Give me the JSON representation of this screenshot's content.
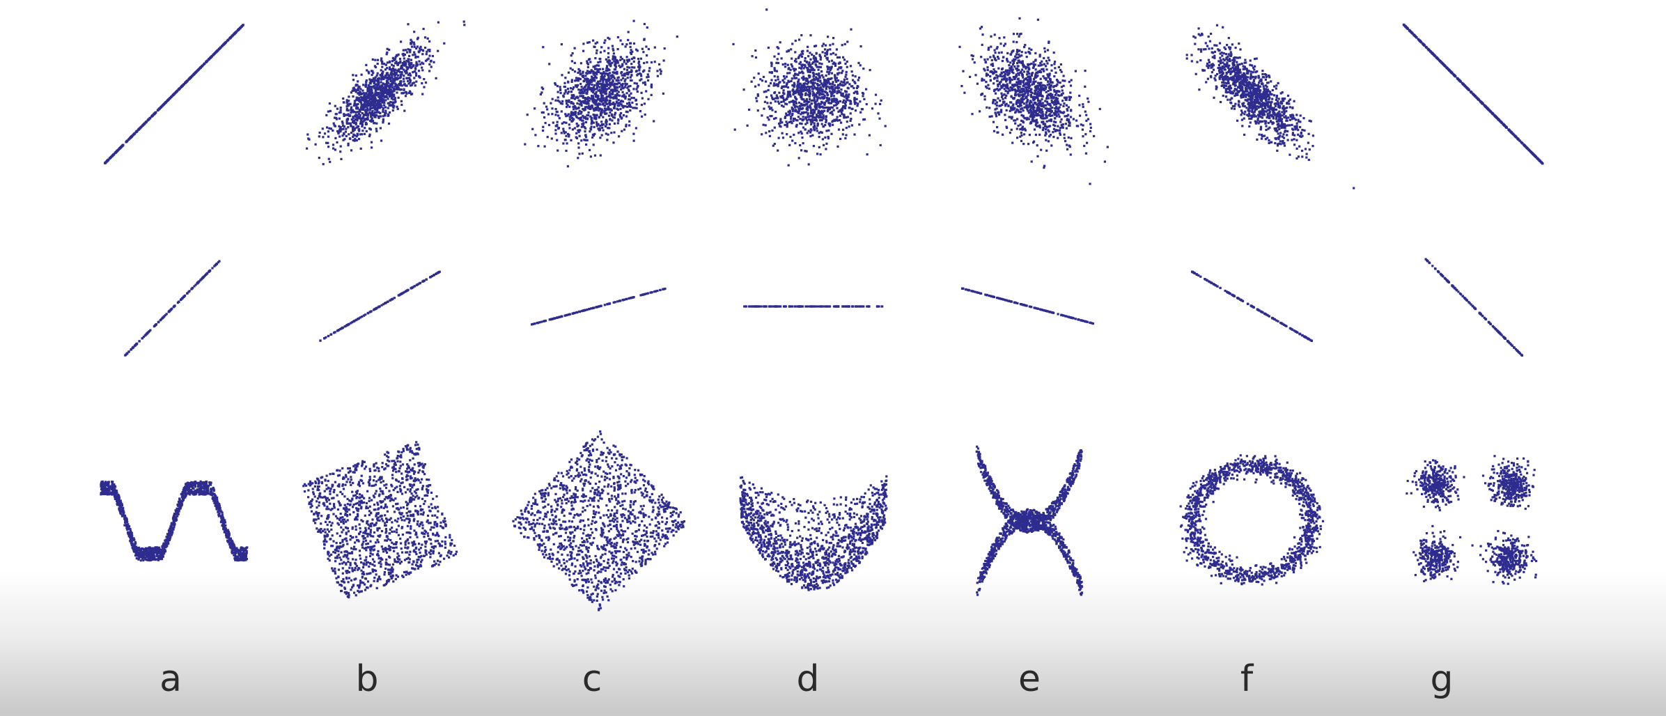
{
  "chart_data": {
    "type": "scatter",
    "point_color": "#2e2c8f",
    "axes_visible": false,
    "grid": false,
    "column_labels": [
      "a",
      "b",
      "c",
      "d",
      "e",
      "f",
      "g"
    ],
    "rows": [
      {
        "row": 1,
        "description_kind": "gaussian clouds with varying correlation",
        "correlations": [
          1.0,
          0.8,
          0.4,
          0.0,
          -0.4,
          -0.8,
          -1.0
        ]
      },
      {
        "row": 2,
        "description_kind": "perfect linear relationships with varying slope",
        "correlations": [
          1.0,
          1.0,
          1.0,
          0.0,
          -1.0,
          -1.0,
          -1.0
        ]
      },
      {
        "row": 3,
        "description_kind": "nonlinear relationships with zero correlation",
        "shapes": [
          "wave",
          "rotated-square",
          "diamond",
          "parabola",
          "x-cross",
          "ring",
          "four-clusters"
        ],
        "correlations": [
          0.0,
          0.0,
          0.0,
          0.0,
          0.0,
          0.0,
          0.0
        ]
      }
    ]
  },
  "labels": {
    "a": "a",
    "b": "b",
    "c": "c",
    "d": "d",
    "e": "e",
    "f": "f",
    "g": "g"
  }
}
